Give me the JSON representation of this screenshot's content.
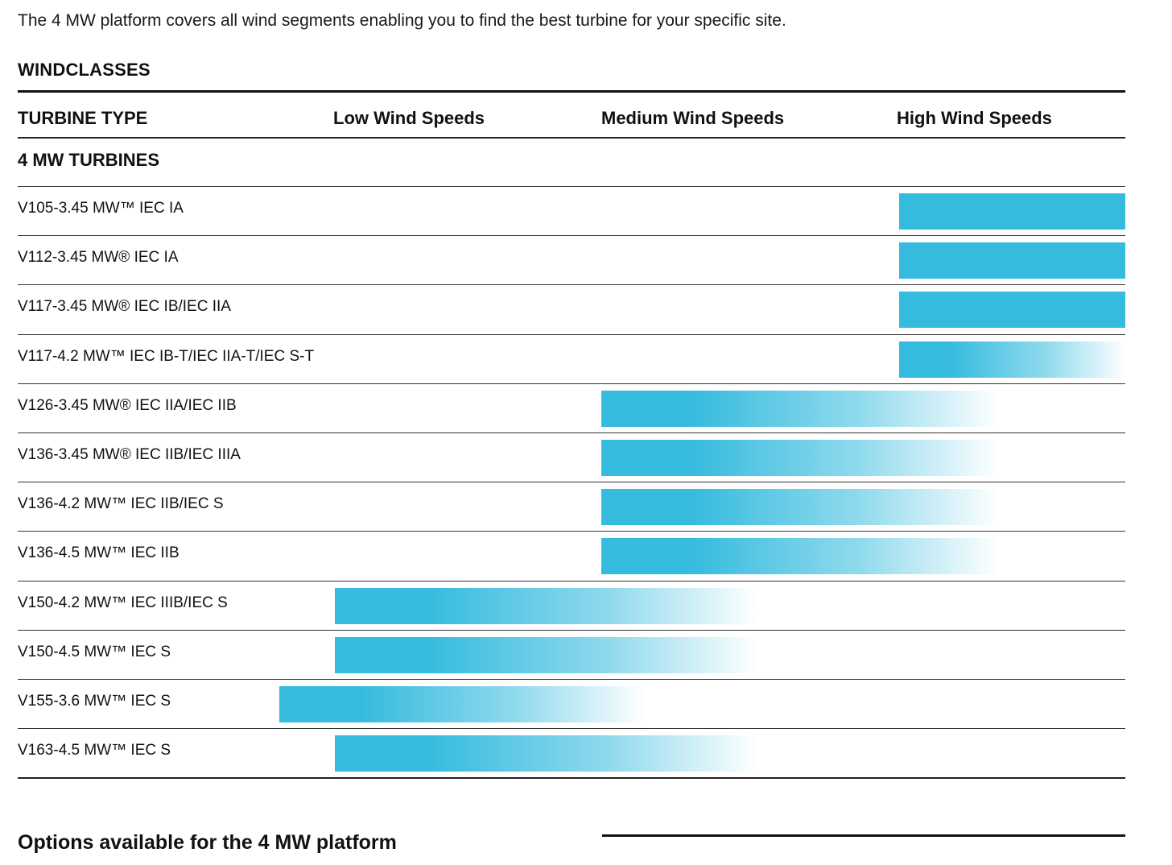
{
  "intro": "The 4 MW platform covers all wind segments enabling you to find the best turbine for your specific site.",
  "section_title": "WINDCLASSES",
  "headers": {
    "turbine_type": "TURBINE TYPE",
    "low": "Low Wind Speeds",
    "medium": "Medium Wind Speeds",
    "high": "High Wind Speeds"
  },
  "group_title": "4 MW TURBINES",
  "colors": {
    "bar": "#35bbde"
  },
  "chart_data": {
    "type": "table",
    "columns": [
      "TURBINE TYPE",
      "Low Wind Speeds",
      "Medium Wind Speeds",
      "High Wind Speeds"
    ],
    "rows": [
      {
        "label": "V105-3.45 MW™ IEC IA",
        "segment": "high",
        "start_fraction": 0.796,
        "end_fraction": 1.0,
        "fade": false
      },
      {
        "label": "V112-3.45 MW® IEC IA",
        "segment": "high",
        "start_fraction": 0.796,
        "end_fraction": 1.0,
        "fade": false
      },
      {
        "label": "V117-3.45 MW® IEC IB/IEC IIA",
        "segment": "high",
        "start_fraction": 0.796,
        "end_fraction": 1.0,
        "fade": false
      },
      {
        "label": "V117-4.2 MW™ IEC IB-T/IEC IIA-T/IEC S-T",
        "segment": "high",
        "start_fraction": 0.796,
        "end_fraction": 1.0,
        "fade": true
      },
      {
        "label": "V126-3.45 MW® IEC IIA/IEC IIB",
        "segment": "medium",
        "start_fraction": 0.527,
        "end_fraction": 0.886,
        "fade": true
      },
      {
        "label": "V136-3.45 MW® IEC IIB/IEC IIIA",
        "segment": "medium",
        "start_fraction": 0.527,
        "end_fraction": 0.886,
        "fade": true
      },
      {
        "label": "V136-4.2 MW™ IEC IIB/IEC S",
        "segment": "medium",
        "start_fraction": 0.527,
        "end_fraction": 0.886,
        "fade": true
      },
      {
        "label": "V136-4.5 MW™ IEC IIB",
        "segment": "medium",
        "start_fraction": 0.527,
        "end_fraction": 0.886,
        "fade": true
      },
      {
        "label": "V150-4.2 MW™ IEC IIIB/IEC S",
        "segment": "low",
        "start_fraction": 0.286,
        "end_fraction": 0.668,
        "fade": true
      },
      {
        "label": "V150-4.5 MW™ IEC S",
        "segment": "low",
        "start_fraction": 0.286,
        "end_fraction": 0.668,
        "fade": true
      },
      {
        "label": "V155-3.6 MW™ IEC S",
        "segment": "low",
        "start_fraction": 0.236,
        "end_fraction": 0.566,
        "fade": true
      },
      {
        "label": "V163-4.5 MW™ IEC S",
        "segment": "low",
        "start_fraction": 0.286,
        "end_fraction": 0.668,
        "fade": true
      }
    ]
  },
  "options_title": "Options available for the 4 MW platform"
}
